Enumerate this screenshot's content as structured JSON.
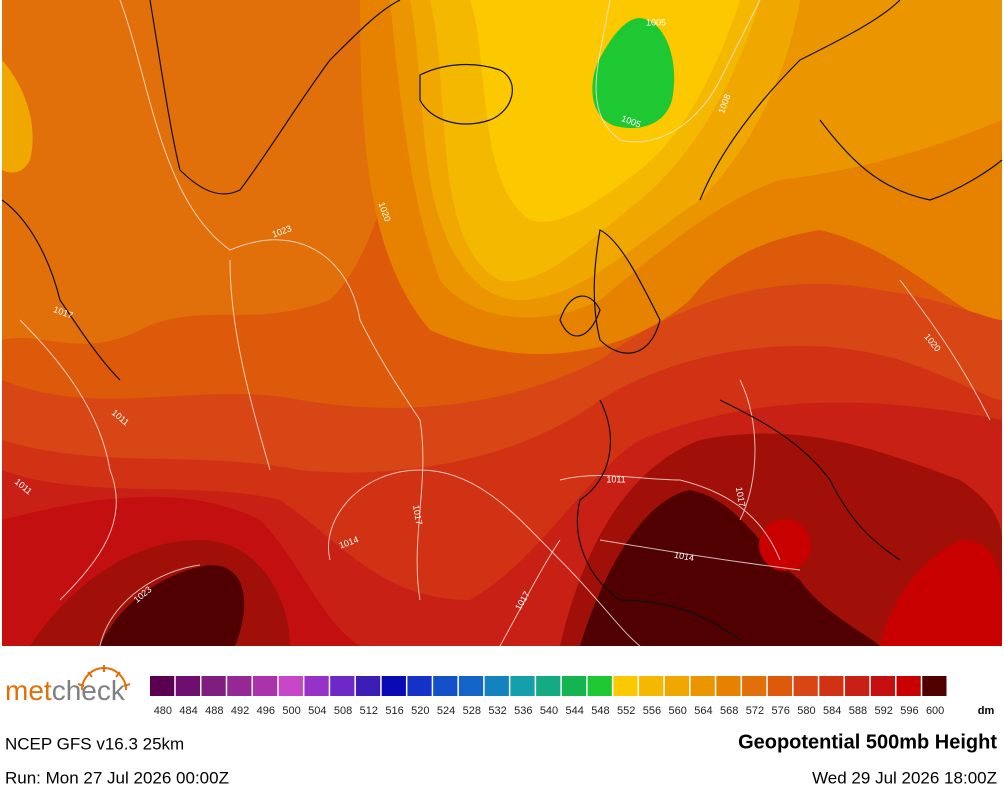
{
  "map": {
    "isobar_labels": [
      "1005",
      "1005",
      "1008",
      "1020",
      "1023",
      "1017",
      "1011",
      "1011",
      "1020",
      "1011",
      "1017",
      "1014",
      "1017",
      "1014",
      "1023",
      "1017"
    ]
  },
  "legend": {
    "levels": [
      {
        "value": 480,
        "color": "#5a0050"
      },
      {
        "value": 484,
        "color": "#6e0e6e"
      },
      {
        "value": 488,
        "color": "#801e80"
      },
      {
        "value": 492,
        "color": "#962896"
      },
      {
        "value": 496,
        "color": "#aa32aa"
      },
      {
        "value": 500,
        "color": "#c846c8"
      },
      {
        "value": 504,
        "color": "#9632c8"
      },
      {
        "value": 508,
        "color": "#6e28c8"
      },
      {
        "value": 512,
        "color": "#3c1eb4"
      },
      {
        "value": 516,
        "color": "#0a0ab4"
      },
      {
        "value": 520,
        "color": "#1432c8"
      },
      {
        "value": 524,
        "color": "#1450c8"
      },
      {
        "value": 528,
        "color": "#1464c8"
      },
      {
        "value": 532,
        "color": "#1482be"
      },
      {
        "value": 536,
        "color": "#14a0aa"
      },
      {
        "value": 540,
        "color": "#14aa82"
      },
      {
        "value": 544,
        "color": "#14b450"
      },
      {
        "value": 548,
        "color": "#1ec832"
      },
      {
        "value": 552,
        "color": "#fcc800"
      },
      {
        "value": 556,
        "color": "#f5b800"
      },
      {
        "value": 560,
        "color": "#f0a800"
      },
      {
        "value": 564,
        "color": "#eb9600"
      },
      {
        "value": 568,
        "color": "#e68200"
      },
      {
        "value": 572,
        "color": "#e1700a"
      },
      {
        "value": 576,
        "color": "#dc5a0a"
      },
      {
        "value": 580,
        "color": "#d74614"
      },
      {
        "value": 584,
        "color": "#d23214"
      },
      {
        "value": 588,
        "color": "#c82014"
      },
      {
        "value": 592,
        "color": "#c30f0f"
      },
      {
        "value": 596,
        "color": "#c80000"
      },
      {
        "value": 600,
        "color": "#500000"
      }
    ],
    "unit": "dm"
  },
  "logo": {
    "part1": "met",
    "part2": "check"
  },
  "footer": {
    "model": "NCEP GFS v16.3 25km",
    "title": "Geopotential 500mb Height",
    "run": "Run: Mon 27 Jul 2026 00:00Z",
    "valid": "Wed 29 Jul 2026 18:00Z"
  }
}
